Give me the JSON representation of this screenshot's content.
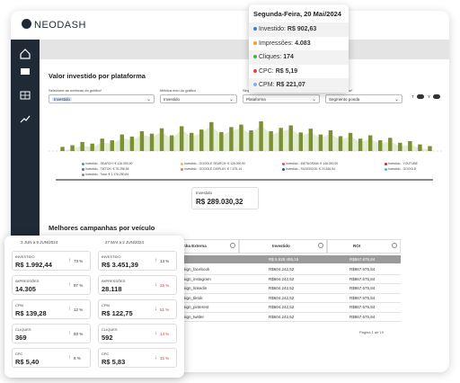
{
  "logo": "NEODASH",
  "tooltip": {
    "date": "Segunda-Feira, 20 Mai/2024",
    "items": [
      {
        "label": "Investido:",
        "value": "R$ 902,63",
        "color": "#3b82c4"
      },
      {
        "label": "Impressões:",
        "value": "4.083",
        "color": "#f0a030"
      },
      {
        "label": "Cliques:",
        "value": "174",
        "color": "#4caf50"
      },
      {
        "label": "CPC:",
        "value": "R$ 5,19",
        "color": "#e04040"
      },
      {
        "label": "CPM:",
        "value": "R$ 221,07",
        "color": "#7fb3e0"
      }
    ]
  },
  "section1": {
    "title": "Valor investido por plataforma",
    "filters": [
      {
        "label": "Selecione as métricas do gráfico*",
        "value": "Investido"
      },
      {
        "label": "Métrica eixo do gráfico",
        "value": "Investido"
      },
      {
        "label": "Sing",
        "value": "Plataforma"
      },
      {
        "label": "dados*",
        "value": "Segmento ponda"
      }
    ],
    "toggles": [
      "T",
      "Y"
    ]
  },
  "chart": {
    "type": "bar",
    "color": "#7d8f35",
    "area_color": "#cfe3b0",
    "ylim": [
      0,
      100
    ],
    "values": [
      10,
      14,
      22,
      18,
      30,
      26,
      40,
      35,
      48,
      42,
      55,
      38,
      60,
      44,
      52,
      70,
      46,
      58,
      64,
      50,
      72,
      48,
      56,
      62,
      45,
      54,
      40,
      50,
      36,
      44,
      30,
      38,
      26,
      32,
      20,
      24,
      16,
      12
    ],
    "legend": [
      {
        "label": "Investido - SEARCH: € 126.090,90",
        "color": "#4a90d9"
      },
      {
        "label": "Investido - GOOGLE SEARCH: € 126.090,90",
        "color": "#f0c030"
      },
      {
        "label": "Investido - INSTAGRAM: € 146.090,90",
        "color": "#e05050"
      },
      {
        "label": "Investido - YOUTUBE",
        "color": "#d02828"
      },
      {
        "label": "Investido - TIKTOK: € 76.296,55",
        "color": "#7a5ac8"
      },
      {
        "label": "Investido - GOOGLE DISPLAY: € 7.475,14",
        "color": "#f08030"
      },
      {
        "label": "Investido - FACEBOOK: € 22.816,94",
        "color": "#3050a0"
      },
      {
        "label": "Investido - GOOGLE",
        "color": "#50b0e0"
      },
      {
        "label": "Investido - Total: € 1.176.280,84",
        "color": "#888888"
      }
    ]
  },
  "summary": {
    "label": "Investido",
    "value": "R$ 289.030,32"
  },
  "section2": {
    "title": "Melhores campanhas por veículo"
  },
  "table": {
    "headers": [
      "nha Externa",
      "Investido",
      "ROI"
    ],
    "total": [
      "R$ 5.628.455,15",
      "R$867.675,84"
    ],
    "rows": [
      [
        "aign_facebook",
        "R$604.242,52",
        "R$867.675,84"
      ],
      [
        "aign_instagram",
        "R$604.242,52",
        "R$867.675,84"
      ],
      [
        "aign_linkedin",
        "R$604.242,52",
        "R$867.675,84"
      ],
      [
        "aign_tiktok",
        "R$604.242,52",
        "R$867.675,84"
      ],
      [
        "aign_pinterest",
        "R$604.242,52",
        "R$867.675,84"
      ],
      [
        "aign_twitter",
        "R$604.242,52",
        "R$867.675,84"
      ]
    ],
    "pagination": "Página 1 de 10"
  },
  "comparison": {
    "periods": [
      "3 JUN a 9 JUN/2024",
      "27 MAI a 2 JUN/2024"
    ],
    "metrics": [
      {
        "label": "INVESTIDO",
        "a": "R$ 1.992,44",
        "a_change": "73 %",
        "a_dir": "up",
        "b": "R$ 3.451,39",
        "b_change": "13 %",
        "b_dir": "up"
      },
      {
        "label": "IMPRESSÕES",
        "a": "14.305",
        "a_change": "97 %",
        "a_dir": "up",
        "b": "28.118",
        "b_change": "25 %",
        "b_dir": "down"
      },
      {
        "label": "CPM",
        "a": "R$ 139,28",
        "a_change": "12 %",
        "a_dir": "up",
        "b": "R$ 122,75",
        "b_change": "51 %",
        "b_dir": "down"
      },
      {
        "label": "CLIQUES",
        "a": "369",
        "a_change": "80 %",
        "a_dir": "up",
        "b": "592",
        "b_change": "14 %",
        "b_dir": "down"
      },
      {
        "label": "CPC",
        "a": "R$ 5,40",
        "a_change": "8 %",
        "a_dir": "up",
        "b": "R$ 5,83",
        "b_change": "32 %",
        "b_dir": "down"
      }
    ]
  }
}
